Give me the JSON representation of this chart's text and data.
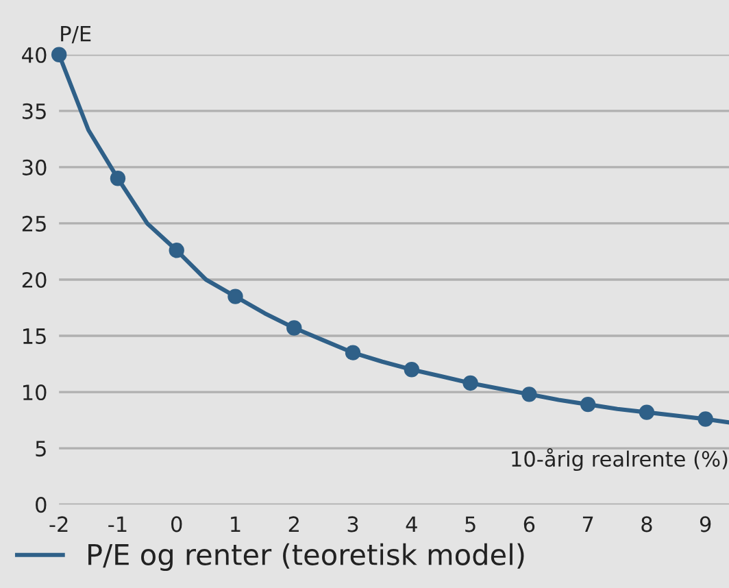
{
  "chart_data": {
    "type": "line",
    "ylabel": "P/E",
    "xlabel": "10-årig realrente (%)",
    "series": [
      {
        "name": "P/E og renter (teoretisk model)",
        "color": "#2f6088",
        "marker": "none",
        "x": [
          -2,
          -1.5,
          -1,
          -0.5,
          0,
          0.5,
          1,
          1.5,
          2,
          2.5,
          3,
          3.5,
          4,
          4.5,
          5,
          5.5,
          6,
          6.5,
          7,
          7.5,
          8,
          8.5,
          9,
          9.4
        ],
        "values": [
          40,
          33.3,
          29,
          25,
          22.6,
          20,
          18.5,
          17,
          15.7,
          14.6,
          13.5,
          12.7,
          12,
          11.4,
          10.8,
          10.3,
          9.8,
          9.3,
          8.9,
          8.5,
          8.2,
          7.9,
          7.6,
          7.3
        ]
      },
      {
        "color": "#2f6088",
        "type": "scatter",
        "marker": "circle",
        "x": [
          -2,
          -1,
          0,
          1,
          2,
          3,
          4,
          5,
          6,
          7,
          8,
          9
        ],
        "values": [
          40,
          29,
          22.6,
          18.5,
          15.7,
          13.5,
          12,
          10.8,
          9.8,
          8.9,
          8.2,
          7.6
        ]
      }
    ],
    "xlim": [
      -2,
      9.4
    ],
    "xticks": [
      -2,
      -1,
      0,
      1,
      2,
      3,
      4,
      5,
      6,
      7,
      8,
      9
    ],
    "ylim": [
      0,
      40
    ],
    "yticks": [
      0,
      5,
      10,
      15,
      20,
      25,
      30,
      35,
      40
    ],
    "grid": "y",
    "legend": "bottom"
  }
}
